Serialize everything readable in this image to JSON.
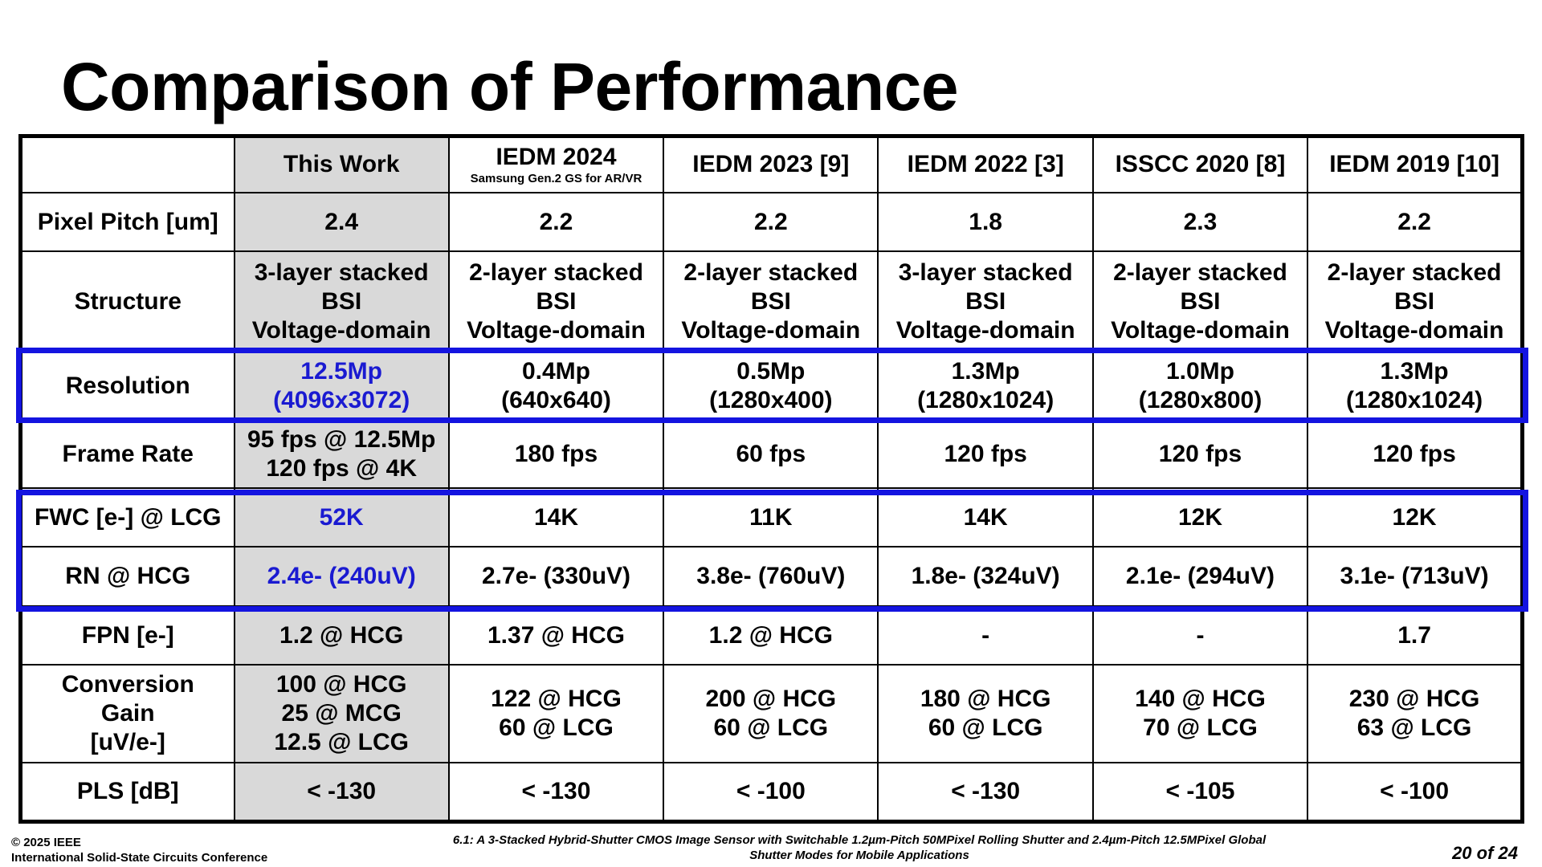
{
  "title": "Comparison of Performance",
  "columns": [
    {
      "label": "",
      "sub": ""
    },
    {
      "label": "This Work",
      "sub": ""
    },
    {
      "label": "IEDM 2024",
      "sub": "Samsung Gen.2 GS for AR/VR"
    },
    {
      "label": "IEDM 2023 [9]",
      "sub": ""
    },
    {
      "label": "IEDM 2022 [3]",
      "sub": ""
    },
    {
      "label": "ISSCC 2020 [8]",
      "sub": ""
    },
    {
      "label": "IEDM 2019 [10]",
      "sub": ""
    }
  ],
  "rows": {
    "pixel_pitch": {
      "label": "Pixel Pitch [um]",
      "values": [
        "2.4",
        "2.2",
        "2.2",
        "1.8",
        "2.3",
        "2.2"
      ]
    },
    "structure": {
      "label": "Structure",
      "values": [
        [
          "3-layer stacked",
          "BSI",
          "Voltage-domain"
        ],
        [
          "2-layer stacked",
          "BSI",
          "Voltage-domain"
        ],
        [
          "2-layer stacked",
          "BSI",
          "Voltage-domain"
        ],
        [
          "3-layer stacked",
          "BSI",
          "Voltage-domain"
        ],
        [
          "2-layer stacked",
          "BSI",
          "Voltage-domain"
        ],
        [
          "2-layer stacked",
          "BSI",
          "Voltage-domain"
        ]
      ]
    },
    "resolution": {
      "label": "Resolution",
      "values": [
        [
          "12.5Mp",
          "(4096x3072)"
        ],
        [
          "0.4Mp",
          "(640x640)"
        ],
        [
          "0.5Mp",
          "(1280x400)"
        ],
        [
          "1.3Mp",
          "(1280x1024)"
        ],
        [
          "1.0Mp",
          "(1280x800)"
        ],
        [
          "1.3Mp",
          "(1280x1024)"
        ]
      ]
    },
    "frame_rate": {
      "label": "Frame Rate",
      "values": [
        [
          "95 fps @ 12.5Mp",
          "120 fps @ 4K"
        ],
        [
          "180 fps"
        ],
        [
          "60 fps"
        ],
        [
          "120 fps"
        ],
        [
          "120 fps"
        ],
        [
          "120 fps"
        ]
      ]
    },
    "fwc": {
      "label": "FWC [e-] @ LCG",
      "values": [
        "52K",
        "14K",
        "11K",
        "14K",
        "12K",
        "12K"
      ]
    },
    "rn": {
      "label": "RN @ HCG",
      "values": [
        "2.4e- (240uV)",
        "2.7e- (330uV)",
        "3.8e- (760uV)",
        "1.8e- (324uV)",
        "2.1e- (294uV)",
        "3.1e- (713uV)"
      ]
    },
    "fpn": {
      "label": "FPN [e-]",
      "values": [
        "1.2 @ HCG",
        "1.37 @ HCG",
        "1.2 @ HCG",
        "-",
        "-",
        "1.7"
      ]
    },
    "conversion_gain": {
      "label": [
        "Conversion",
        "Gain",
        "[uV/e-]"
      ],
      "values": [
        [
          "100 @ HCG",
          "25 @ MCG",
          "12.5 @ LCG"
        ],
        [
          "122 @ HCG",
          "60 @ LCG"
        ],
        [
          "200 @ HCG",
          "60 @ LCG"
        ],
        [
          "180 @ HCG",
          "60 @ LCG"
        ],
        [
          "140 @ HCG",
          "70 @ LCG"
        ],
        [
          "230 @ HCG",
          "63 @ LCG"
        ]
      ]
    },
    "pls": {
      "label": "PLS [dB]",
      "values": [
        "< -130",
        "< -130",
        "< -100",
        "< -130",
        "< -105",
        "< -100"
      ]
    }
  },
  "footer": {
    "copyright_line1": "© 2025 IEEE",
    "copyright_line2": "International Solid-State Circuits Conference",
    "paper_line1": "6.1: A 3-Stacked Hybrid-Shutter CMOS Image Sensor with Switchable 1.2µm-Pitch 50MPixel Rolling Shutter and 2.4µm-Pitch 12.5MPixel Global",
    "paper_line2": "Shutter Modes for Mobile Applications",
    "page": "20 of 24"
  },
  "colors": {
    "highlight_blue": "#1414e0",
    "text_blue": "#1a1ad1",
    "this_work_bg": "#d9d9d9"
  }
}
